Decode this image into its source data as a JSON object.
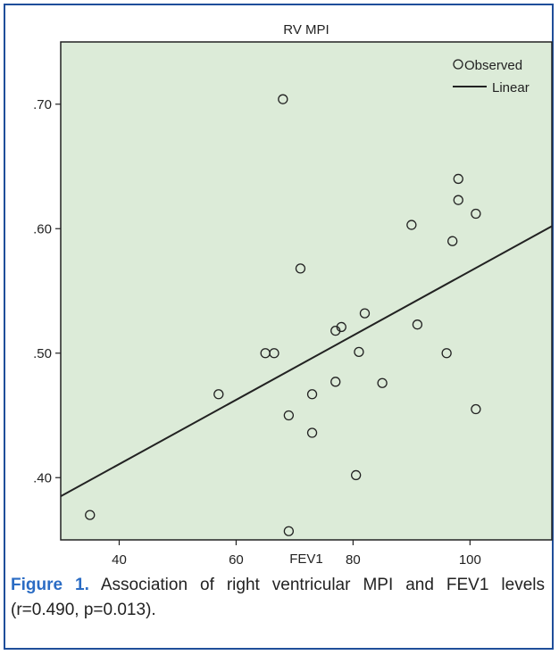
{
  "chart_data": {
    "type": "scatter",
    "title": "RV MPI",
    "xlabel": "FEV1",
    "ylabel": "",
    "xlim": [
      30,
      114
    ],
    "ylim": [
      0.35,
      0.75
    ],
    "xticks": [
      40,
      60,
      80,
      100
    ],
    "xtick_labels": [
      "40",
      "60",
      "80",
      "100"
    ],
    "yticks": [
      0.4,
      0.5,
      0.6,
      0.7
    ],
    "ytick_labels": [
      ".40",
      ".50",
      ".60",
      ".70"
    ],
    "grid": false,
    "legend_position": "top-right",
    "background_color": "#dcebd8",
    "series": [
      {
        "name": "Observed",
        "kind": "points",
        "marker": "open-circle",
        "x": [
          35,
          57,
          65,
          66.5,
          68,
          69,
          69,
          71,
          73,
          73,
          77,
          77,
          78,
          80.5,
          81,
          82,
          85,
          90,
          91,
          96,
          97,
          98,
          98,
          101,
          101
        ],
        "y": [
          0.37,
          0.467,
          0.5,
          0.5,
          0.704,
          0.45,
          0.357,
          0.568,
          0.467,
          0.436,
          0.477,
          0.518,
          0.521,
          0.402,
          0.501,
          0.532,
          0.476,
          0.603,
          0.523,
          0.5,
          0.59,
          0.64,
          0.623,
          0.612,
          0.455
        ]
      },
      {
        "name": "Linear",
        "kind": "line",
        "x": [
          30,
          114
        ],
        "y": [
          0.385,
          0.602
        ]
      }
    ]
  },
  "caption": {
    "label": "Figure 1.",
    "text": " Association of right ventricular MPI and FEV1 levels (r=0.490, p=0.013)."
  }
}
